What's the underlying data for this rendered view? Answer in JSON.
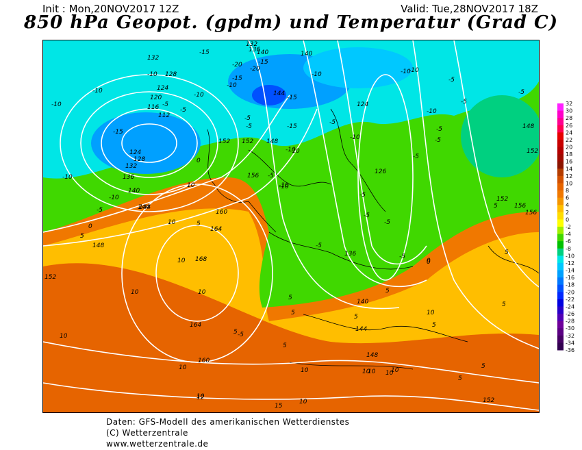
{
  "header": {
    "init": "Init : Mon,20NOV2017 12Z",
    "valid": "Valid: Tue,28NOV2017 18Z",
    "title": "850 hPa Geopot. (gpdm) und Temperatur (Grad C)"
  },
  "colorbar": {
    "ticks": [
      "32",
      "30",
      "28",
      "26",
      "24",
      "22",
      "20",
      "18",
      "16",
      "14",
      "12",
      "10",
      "8",
      "6",
      "4",
      "2",
      "0",
      "-2",
      "-4",
      "-6",
      "-8",
      "-10",
      "-12",
      "-14",
      "-16",
      "-18",
      "-20",
      "-22",
      "-24",
      "-26",
      "-28",
      "-30",
      "-32",
      "-34",
      "-36"
    ],
    "colors": [
      "#ff20ff",
      "#ff00c8",
      "#ff0090",
      "#ff0050",
      "#e60000",
      "#c80000",
      "#b40000",
      "#a00a00",
      "#8c1400",
      "#b43c00",
      "#d25000",
      "#e66400",
      "#f07800",
      "#f59600",
      "#ffbe00",
      "#ffdc00",
      "#ffff00",
      "#a0f000",
      "#40d800",
      "#00c000",
      "#00d080",
      "#00e6e6",
      "#00c8ff",
      "#00a0ff",
      "#0078ff",
      "#0050ff",
      "#0028ff",
      "#0000e0",
      "#2800c8",
      "#5000b4",
      "#6e009a",
      "#5a0082",
      "#460064",
      "#320050"
    ]
  },
  "map_labels": {
    "geopotential": [
      "132",
      "128",
      "124",
      "120",
      "116",
      "112",
      "124",
      "128",
      "132",
      "136",
      "140",
      "144",
      "152",
      "152",
      "148",
      "156",
      "160",
      "164",
      "168",
      "164",
      "160",
      "148",
      "144",
      "140",
      "136",
      "132",
      "124",
      "126",
      "140",
      "144",
      "148",
      "152",
      "156",
      "156",
      "152",
      "136",
      "144",
      "140",
      "120",
      "148",
      "152",
      "152"
    ],
    "temperature": [
      "-15",
      "-10",
      "-10",
      "-10",
      "-10",
      "-5",
      "-5",
      "-15",
      "-20",
      "-15",
      "-20",
      "-15",
      "-10",
      "-10",
      "-15",
      "-15",
      "-10",
      "-5",
      "-5",
      "-10",
      "-5",
      "-5",
      "-10",
      "-5",
      "-5",
      "-10",
      "-10",
      "-5",
      "-5",
      "-5",
      "-5",
      "-5",
      "0",
      "0",
      "0",
      "5",
      "5",
      "10",
      "10",
      "10",
      "10",
      "10",
      "10",
      "5",
      "5",
      "5",
      "10",
      "10",
      "10",
      "10",
      "10",
      "15",
      "5",
      "5",
      "10",
      "5",
      "-5",
      "-5",
      "-5",
      "-10",
      "-10",
      "-10",
      "-10",
      "-10",
      "-5",
      "-5",
      "-5",
      "5",
      "5",
      "0",
      "5",
      "5",
      "5",
      "5",
      "10",
      "10",
      "12",
      "10"
    ]
  },
  "footer": {
    "line1": "Daten: GFS-Modell des amerikanischen Wetterdienstes",
    "line2": "(C) Wetterzentrale",
    "line3": "www.wetterzentrale.de"
  }
}
